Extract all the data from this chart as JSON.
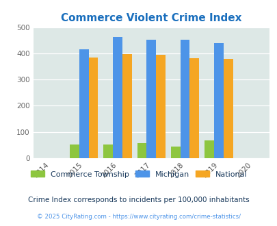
{
  "title": "Commerce Violent Crime Index",
  "years": [
    2015,
    2016,
    2017,
    2018,
    2019
  ],
  "x_ticks": [
    2014,
    2015,
    2016,
    2017,
    2018,
    2019,
    2020
  ],
  "commerce": [
    52,
    53,
    58,
    44,
    68
  ],
  "michigan": [
    416,
    462,
    451,
    451,
    438
  ],
  "national": [
    383,
    398,
    394,
    381,
    380
  ],
  "color_commerce": "#8dc63f",
  "color_michigan": "#4d94e8",
  "color_national": "#f5a623",
  "ylim": [
    0,
    500
  ],
  "yticks": [
    0,
    100,
    200,
    300,
    400,
    500
  ],
  "bg_color": "#dde8e6",
  "title_color": "#1a6fbd",
  "bar_width": 0.28,
  "legend_labels": [
    "Commerce Township",
    "Michigan",
    "National"
  ],
  "subtitle": "Crime Index corresponds to incidents per 100,000 inhabitants",
  "footer": "© 2025 CityRating.com - https://www.cityrating.com/crime-statistics/",
  "subtitle_color": "#1a3a5c",
  "footer_color": "#4d94e8",
  "xlim": [
    2013.5,
    2020.5
  ]
}
